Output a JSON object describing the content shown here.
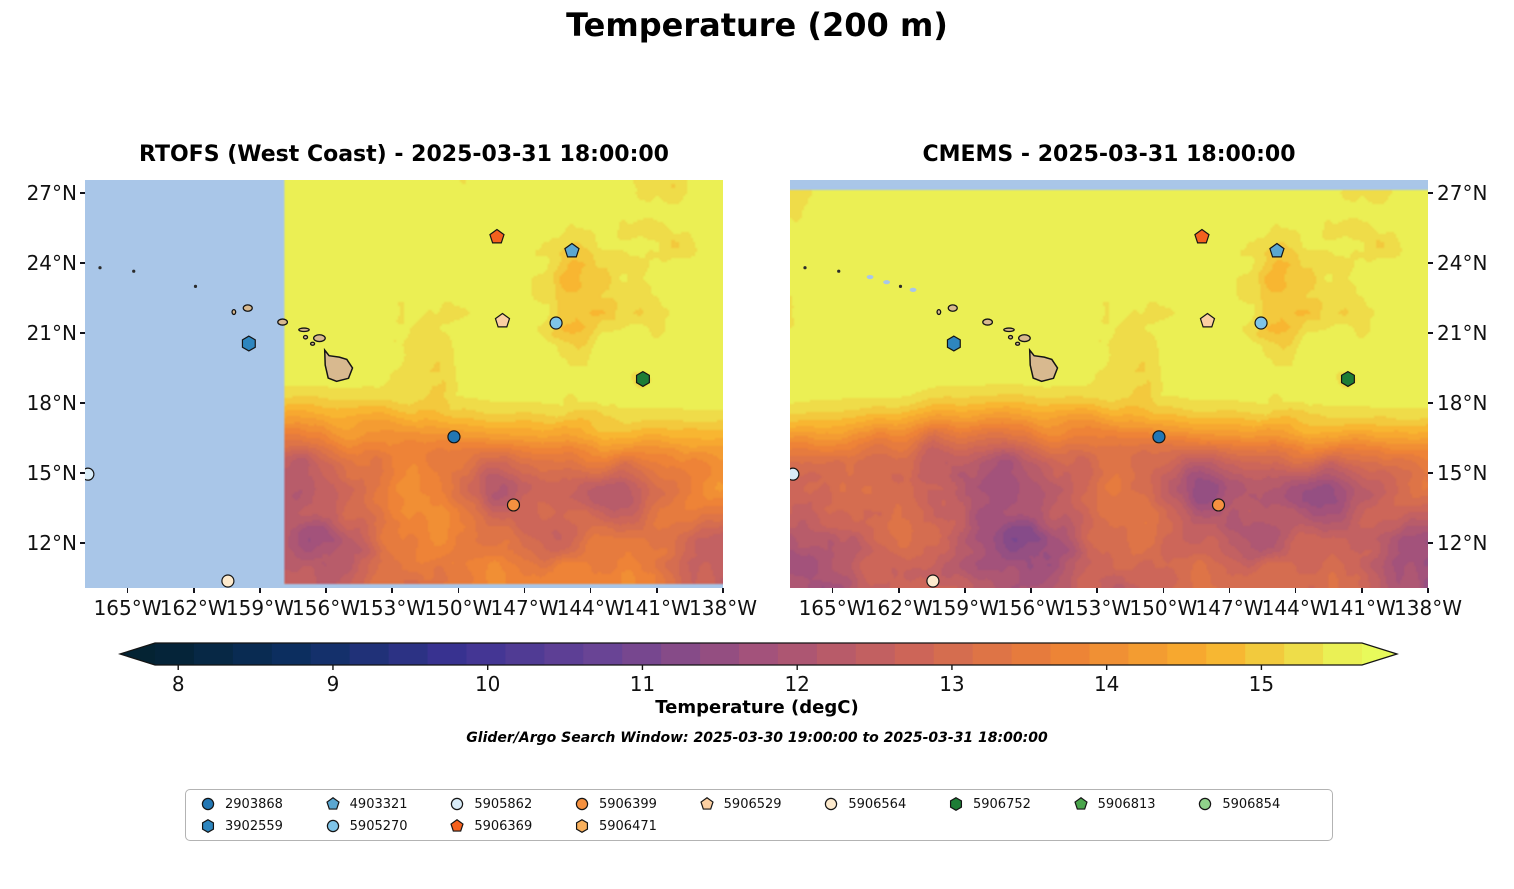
{
  "chart_data": {
    "type": "heatmap",
    "title": "Temperature (200 m)",
    "panels": [
      {
        "name": "rtofs",
        "title": "RTOFS (West Coast) - 2025-03-31 18:00:00",
        "no_data_color": "#a9c6e8",
        "no_data_west_of_lon_w": 157.9,
        "no_data_south_of_lat_n": 10.17
      },
      {
        "name": "cmems",
        "title": "CMEMS - 2025-03-31 18:00:00",
        "no_data_color": "#a9c6e8",
        "no_data_north_of_lat_n": 27.2
      }
    ],
    "axes": {
      "lon_w_range": [
        166.93,
        138.0
      ],
      "lat_n_range": [
        27.56,
        10.07
      ],
      "x_ticks": {
        "values": [
          165,
          162,
          159,
          156,
          153,
          150,
          147,
          144,
          141,
          138
        ],
        "labels": [
          "165°W",
          "162°W",
          "159°W",
          "156°W",
          "153°W",
          "150°W",
          "147°W",
          "144°W",
          "141°W",
          "138°W"
        ]
      },
      "y_ticks": {
        "values": [
          27,
          24,
          21,
          18,
          15,
          12
        ],
        "labels": [
          "27°N",
          "24°N",
          "21°N",
          "18°N",
          "15°N",
          "12°N"
        ]
      }
    },
    "colorbar": {
      "label": "Temperature (degC)",
      "range": [
        7.85,
        15.65
      ],
      "ticks": [
        8,
        9,
        10,
        11,
        12,
        13,
        14,
        15
      ],
      "extend": "both",
      "colormap_stops": [
        [
          0.0,
          "#042333"
        ],
        [
          0.125,
          "#0d3064"
        ],
        [
          0.25,
          "#3b3394"
        ],
        [
          0.375,
          "#6b4596"
        ],
        [
          0.5,
          "#a3527b"
        ],
        [
          0.625,
          "#cc655a"
        ],
        [
          0.75,
          "#ed8137"
        ],
        [
          0.875,
          "#f9b02e"
        ],
        [
          1.0,
          "#e8fa5b"
        ]
      ]
    },
    "subtitle": "Glider/Argo Search Window: 2025-03-30 19:00:00 to 2025-03-31 18:00:00",
    "floats": [
      {
        "id": "2903868",
        "shape": "circle",
        "color": "#2277b4",
        "lon_w": 150.2,
        "lat_n": 16.55
      },
      {
        "id": "3902559",
        "shape": "hexagon",
        "color": "#2e86bf",
        "lon_w": 159.5,
        "lat_n": 20.55
      },
      {
        "id": "4903321",
        "shape": "pentagon",
        "color": "#5ba7d1",
        "lon_w": 144.85,
        "lat_n": 24.52
      },
      {
        "id": "5905270",
        "shape": "circle",
        "color": "#7fc4e8",
        "lon_w": 145.57,
        "lat_n": 21.43
      },
      {
        "id": "5905862",
        "shape": "circle",
        "color": "#d9ecf8",
        "lon_w": 166.8,
        "lat_n": 14.95
      },
      {
        "id": "5906369",
        "shape": "pentagon",
        "color": "#f4611e",
        "lon_w": 148.25,
        "lat_n": 25.12
      },
      {
        "id": "5906399",
        "shape": "circle",
        "color": "#f59140",
        "lon_w": 147.5,
        "lat_n": 13.63
      },
      {
        "id": "5906471",
        "shape": "hexagon",
        "color": "#f9b05c",
        "lon_w": null,
        "lat_n": null
      },
      {
        "id": "5906529",
        "shape": "pentagon",
        "color": "#fbcfa2",
        "lon_w": 148.0,
        "lat_n": 21.52
      },
      {
        "id": "5906564",
        "shape": "circle",
        "color": "#fdeacd",
        "lon_w": 160.45,
        "lat_n": 10.37
      },
      {
        "id": "5906752",
        "shape": "hexagon",
        "color": "#1e7d36",
        "lon_w": 141.63,
        "lat_n": 19.03
      },
      {
        "id": "5906813",
        "shape": "pentagon",
        "color": "#4aa54c",
        "lon_w": null,
        "lat_n": null
      },
      {
        "id": "5906854",
        "shape": "circle",
        "color": "#90d38b",
        "lon_w": null,
        "lat_n": null
      }
    ],
    "geography": {
      "island_fill": "#d8b98f",
      "island_edge": "#141414",
      "big_island": [
        [
          156.06,
          20.27
        ],
        [
          155.86,
          20.03
        ],
        [
          155.4,
          19.97
        ],
        [
          155.06,
          19.87
        ],
        [
          154.8,
          19.5
        ],
        [
          154.98,
          19.06
        ],
        [
          155.52,
          18.93
        ],
        [
          155.9,
          19.07
        ],
        [
          156.04,
          19.63
        ]
      ],
      "small_islands": [
        {
          "lon_w": 159.55,
          "lat_n": 22.07,
          "rx": 4.5,
          "ry": 3.2
        },
        {
          "lon_w": 160.18,
          "lat_n": 21.9,
          "rx": 1.8,
          "ry": 2.4
        },
        {
          "lon_w": 157.97,
          "lat_n": 21.47,
          "rx": 4.8,
          "ry": 3.0
        },
        {
          "lon_w": 157.0,
          "lat_n": 21.14,
          "rx": 5.2,
          "ry": 1.7
        },
        {
          "lon_w": 156.93,
          "lat_n": 20.82,
          "rx": 2.0,
          "ry": 1.7
        },
        {
          "lon_w": 156.3,
          "lat_n": 20.78,
          "rx": 5.8,
          "ry": 3.4
        },
        {
          "lon_w": 156.61,
          "lat_n": 20.54,
          "rx": 2.0,
          "ry": 1.5
        }
      ],
      "northwest_islets": [
        {
          "lon_w": 166.25,
          "lat_n": 23.8
        },
        {
          "lon_w": 164.72,
          "lat_n": 23.65
        },
        {
          "lon_w": 161.92,
          "lat_n": 23.0
        }
      ],
      "cmems_shallow_patches": [
        {
          "lon_w": 163.3,
          "lat_n": 23.4
        },
        {
          "lon_w": 162.55,
          "lat_n": 23.18
        },
        {
          "lon_w": 161.35,
          "lat_n": 22.85
        }
      ]
    }
  }
}
